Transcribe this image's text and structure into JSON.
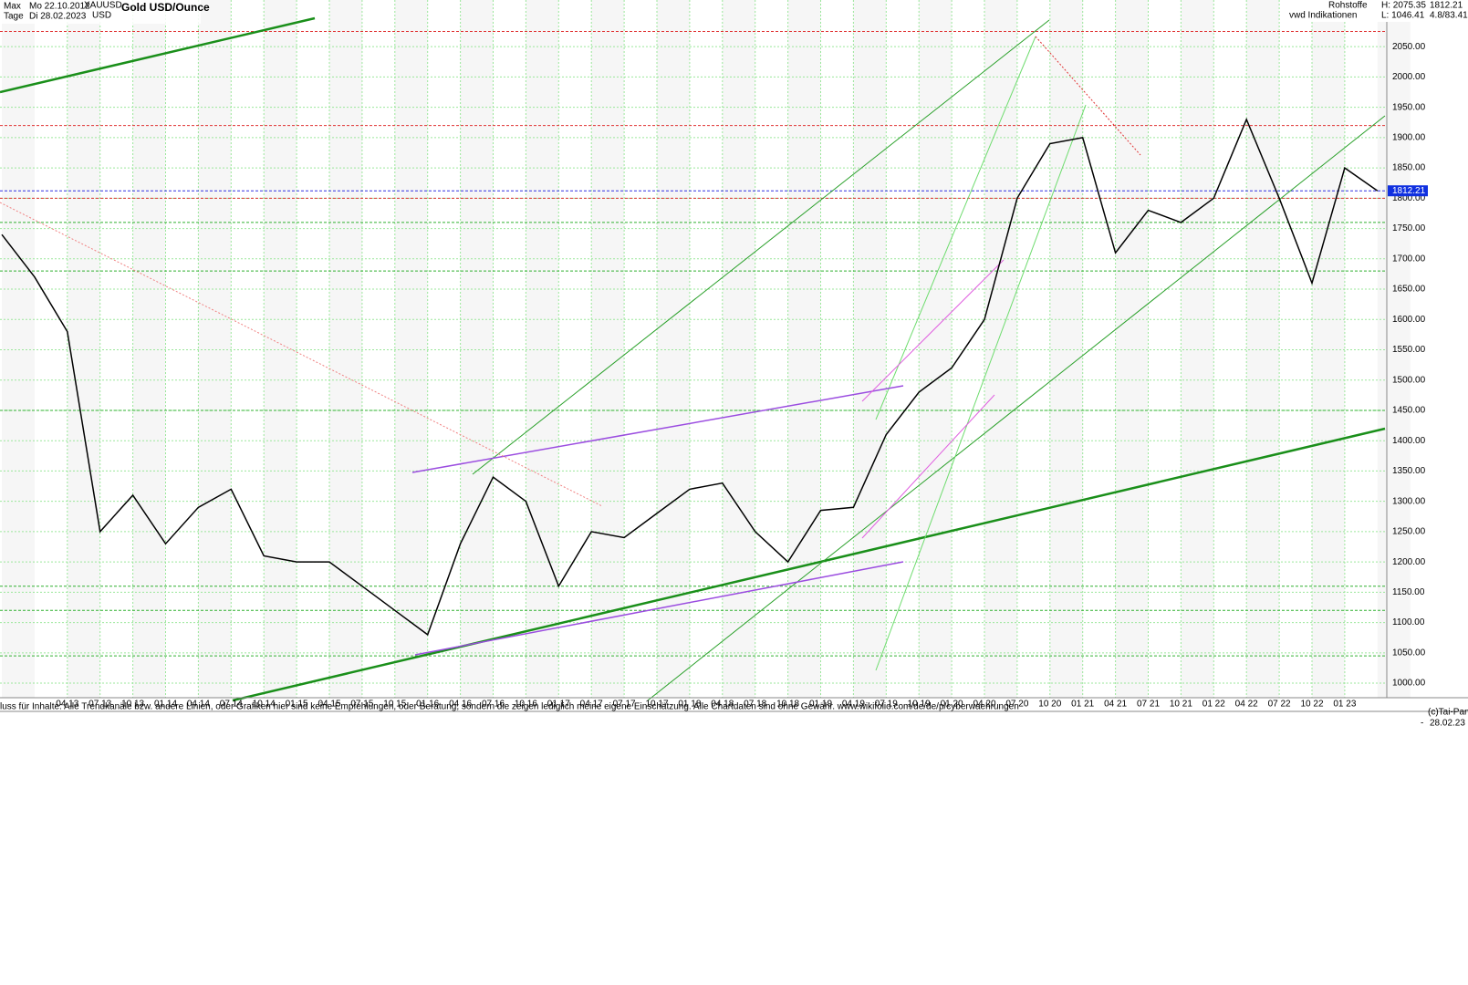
{
  "header": {
    "range": "Max",
    "start_date": "Mo 22.10.2012",
    "symbol": "XAUUSD",
    "interval": "Tage",
    "end_date": "Di 28.02.2023",
    "currency": "USD",
    "group": "Rohstoffe",
    "source": "vwd Indikationen",
    "high": "H: 2075.35",
    "low": "L: 1046.41",
    "ratio": "4.8/83.41",
    "copyright": "(c)Tai-Pan",
    "date_short": "28.02.23",
    "dash": "-"
  },
  "chart_data": {
    "type": "line",
    "title": "Gold USD/Ounce",
    "note": "luss für Inhalte: Alle Trendkanäle bzw. andere Linien, oder Grafiken hier sind keine Empfehlungen, oder Beratung, sondern die zeigen lediglich meine eigene Einschätzung. Alle Chartdaten sind ohne Gewähr.  www.wikifolio.com/de/de/p/cyberwaehrungen",
    "categories": [
      null,
      null,
      "04 13",
      "07 13",
      "10 13",
      "01 14",
      "04 14",
      "07 14",
      "10 14",
      "01 15",
      "04 15",
      "07 15",
      "10 15",
      "01 16",
      "04 16",
      "07 16",
      "10 16",
      "01 17",
      "04 17",
      "07 17",
      "10 17",
      "01 18",
      "04 18",
      "07 18",
      "10 18",
      "01 19",
      "04 19",
      "07 19",
      "10 19",
      "01 20",
      "04 20",
      "07 20",
      "10 20",
      "01 21",
      "04 21",
      "07 21",
      "10 21",
      "01 22",
      "04 22",
      "07 22",
      "10 22",
      "01 23",
      null
    ],
    "series": [
      {
        "name": "XAUUSD",
        "color": "#000000",
        "values": [
          1740,
          1670,
          1580,
          1250,
          1310,
          1230,
          1290,
          1320,
          1210,
          1200,
          1200,
          1160,
          1120,
          1080,
          1230,
          1340,
          1300,
          1160,
          1250,
          1240,
          1280,
          1320,
          1330,
          1250,
          1200,
          1285,
          1290,
          1410,
          1480,
          1520,
          1600,
          1800,
          1890,
          1900,
          1710,
          1780,
          1760,
          1800,
          1930,
          1800,
          1660,
          1850,
          1812.21
        ]
      }
    ],
    "last_price": 1812.21,
    "levels": [
      {
        "value": 2075,
        "color": "#e03030"
      },
      {
        "value": 1920,
        "color": "#e03030"
      },
      {
        "value": 1800,
        "color": "#e03030"
      },
      {
        "value": 1812.21,
        "color": "#3030e0"
      },
      {
        "value": 1760,
        "color": "#30b030"
      },
      {
        "value": 1680,
        "color": "#30b030"
      },
      {
        "value": 1450,
        "color": "#30b030"
      },
      {
        "value": 1160,
        "color": "#30b030"
      },
      {
        "value": 1120,
        "color": "#30b030"
      },
      {
        "value": 1045,
        "color": "#30b030"
      }
    ],
    "ylim": [
      976,
      2127
    ],
    "yticks": [
      {
        "value": 1000,
        "label": "1000.00"
      },
      {
        "value": 1050,
        "label": "1050.00"
      },
      {
        "value": 1100,
        "label": "1100.00"
      },
      {
        "value": 1150,
        "label": "1150.00"
      },
      {
        "value": 1200,
        "label": "1200.00"
      },
      {
        "value": 1250,
        "label": "1250.00"
      },
      {
        "value": 1300,
        "label": "1300.00"
      },
      {
        "value": 1350,
        "label": "1350.00"
      },
      {
        "value": 1400,
        "label": "1400.00"
      },
      {
        "value": 1450,
        "label": "1450.00"
      },
      {
        "value": 1500,
        "label": "1500.00"
      },
      {
        "value": 1550,
        "label": "1550.00"
      },
      {
        "value": 1600,
        "label": "1600.00"
      },
      {
        "value": 1650,
        "label": "1650.00"
      },
      {
        "value": 1700,
        "label": "1700.00"
      },
      {
        "value": 1750,
        "label": "1750.00"
      },
      {
        "value": 1800,
        "label": "1800.00"
      },
      {
        "value": 1850,
        "label": "1850.00"
      },
      {
        "value": 1900,
        "label": "1900.00"
      },
      {
        "value": 1950,
        "label": "1950.00"
      },
      {
        "value": 2000,
        "label": "2000.00"
      },
      {
        "value": 2050,
        "label": "2050.00"
      }
    ],
    "grid": true
  }
}
